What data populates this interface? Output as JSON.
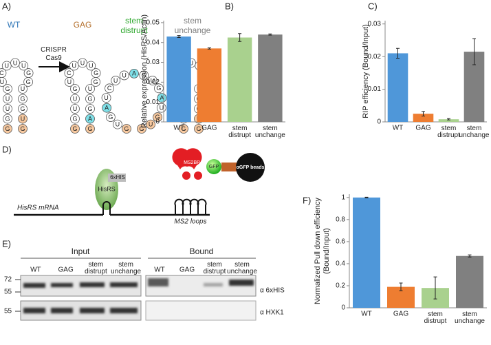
{
  "panel_labels": {
    "a": "A)",
    "b": "B)",
    "c": "C)",
    "d": "D)",
    "e": "E)",
    "f": "F)"
  },
  "diagram_a": {
    "arrow_label": "CRISPR Cas9",
    "structures": [
      {
        "name": "WT",
        "color": "#2e75b6",
        "nucleotides": [
          "G",
          "G",
          "U",
          "U",
          "G",
          "U",
          "C",
          "U",
          "U",
          "U",
          "G",
          "G",
          "U",
          "G",
          "G",
          "U",
          "G"
        ],
        "colors": [
          "#f7c9a0",
          "#ffffff",
          "#ffffff",
          "#ffffff",
          "#ffffff",
          "#ffffff",
          "#ffffff",
          "#ffffff",
          "#ffffff",
          "#ffffff",
          "#ffffff",
          "#ffffff",
          "#ffffff",
          "#ffffff",
          "#ffffff",
          "#f7c9a0",
          "#f7c9a0"
        ]
      },
      {
        "name": "GAG",
        "color": "#b5712e",
        "nucleotides": [
          "G",
          "G",
          "U",
          "U",
          "G",
          "U",
          "C",
          "U",
          "U",
          "U",
          "G",
          "G",
          "U",
          "G",
          "G",
          "A",
          "G"
        ],
        "colors": [
          "#f7c9a0",
          "#ffffff",
          "#ffffff",
          "#ffffff",
          "#ffffff",
          "#ffffff",
          "#ffffff",
          "#ffffff",
          "#ffffff",
          "#ffffff",
          "#ffffff",
          "#ffffff",
          "#ffffff",
          "#ffffff",
          "#ffffff",
          "#7fe0e8",
          "#f7c9a0"
        ]
      },
      {
        "name": "stem distrupt",
        "color": "#2ea82e",
        "nucleotides": [
          "G",
          "U",
          "G",
          "A",
          "U",
          "C",
          "U",
          "U",
          "A",
          "G",
          "U",
          "G",
          "A",
          "U",
          "G",
          "U",
          "G"
        ],
        "colors": [
          "#f7c9a0",
          "#ffffff",
          "#ffffff",
          "#7fe0e8",
          "#ffffff",
          "#ffffff",
          "#ffffff",
          "#ffffff",
          "#7fe0e8",
          "#ffffff",
          "#ffffff",
          "#ffffff",
          "#7fe0e8",
          "#ffffff",
          "#f7c9a0",
          "#f7c9a0",
          "#f7c9a0"
        ]
      },
      {
        "name": "stem unchange",
        "color": "#808080",
        "nucleotides": [
          "G",
          "G",
          "U",
          "U",
          "G",
          "U",
          "C",
          "U",
          "U",
          "U",
          "G",
          "C",
          "U",
          "G",
          "G",
          "U",
          "G"
        ],
        "colors": [
          "#f7c9a0",
          "#ffffff",
          "#ffffff",
          "#ffffff",
          "#ffffff",
          "#ffffff",
          "#ffffff",
          "#ffffff",
          "#ffffff",
          "#ffffff",
          "#ffffff",
          "#7fe0e8",
          "#ffffff",
          "#ffffff",
          "#ffffff",
          "#f7c9a0",
          "#f7c9a0"
        ]
      }
    ]
  },
  "diagram_d": {
    "tag": "6xHIS",
    "protein": "HisRS",
    "binder": "MS2BP",
    "gfp": "GFP",
    "beads": "αGFP beads",
    "mrna": "HisRS mRNA",
    "loops": "MS2 loops"
  },
  "blot_e": {
    "input": "Input",
    "bound": "Bound",
    "lanes": [
      "WT",
      "GAG",
      "stem distrupt",
      "stem unchange"
    ],
    "markers_top": [
      "72",
      "55"
    ],
    "marker_bottom": "55",
    "antibody_top": "α 6xHIS",
    "antibody_bottom": "α HXK1"
  },
  "chart_data": [
    {
      "type": "bar",
      "ylabel": [
        "Relative expression (HisRS/Actin)"
      ],
      "categories": [
        "WT",
        "GAG",
        "stem distrupt",
        "stem unchange"
      ],
      "values": [
        0.043,
        0.037,
        0.0425,
        0.044
      ],
      "errors": [
        0.0005,
        0.0003,
        0.002,
        0.0003
      ],
      "colors": [
        "#4f97d9",
        "#ee7d31",
        "#a9d18e",
        "#808080"
      ],
      "ylim": [
        0,
        0.051
      ],
      "yticks": [
        0,
        0.01,
        0.02,
        0.03,
        0.04,
        0.05
      ]
    },
    {
      "type": "bar",
      "ylabel": [
        "RIP efficiency (Bound/Input)"
      ],
      "categories": [
        "WT",
        "GAG",
        "stem distrupt",
        "stem unchange"
      ],
      "values": [
        0.021,
        0.0025,
        0.0008,
        0.0215
      ],
      "errors": [
        0.0015,
        0.0007,
        0.0002,
        0.004
      ],
      "colors": [
        "#4f97d9",
        "#ee7d31",
        "#a9d18e",
        "#808080"
      ],
      "ylim": [
        0,
        0.031
      ],
      "yticks": [
        0,
        0.01,
        0.02,
        0.03
      ]
    },
    {
      "type": "bar",
      "ylabel": [
        "Normalized Pull down efficiency",
        "(Bound/Input)"
      ],
      "categories": [
        "WT",
        "GAG",
        "stem distrupt",
        "stem unchange"
      ],
      "values": [
        1,
        0.19,
        0.18,
        0.47
      ],
      "errors": [
        0.003,
        0.035,
        0.1,
        0.01
      ],
      "colors": [
        "#4f97d9",
        "#ee7d31",
        "#a9d18e",
        "#808080"
      ],
      "ylim": [
        0,
        1.03
      ],
      "yticks": [
        0,
        0.2,
        0.4,
        0.6,
        0.8,
        1
      ]
    }
  ]
}
